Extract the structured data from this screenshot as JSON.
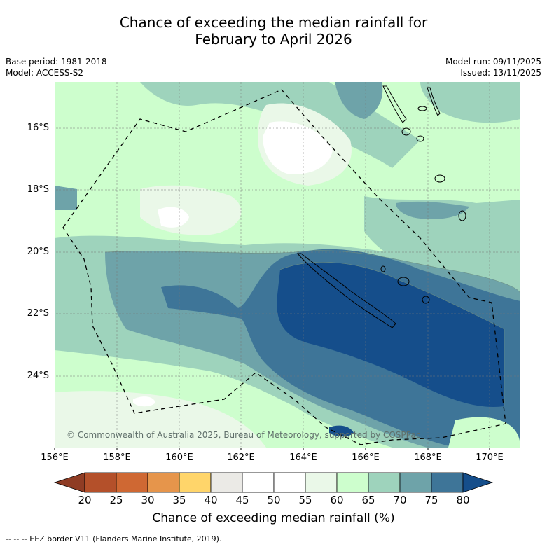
{
  "title": {
    "line1": "Chance of exceeding the median rainfall for",
    "line2": "February to April 2026"
  },
  "meta": {
    "base_period": "Base period: 1981-2018",
    "model": "Model: ACCESS-S2",
    "model_run": "Model run: 09/11/2025",
    "issued": "Issued: 13/11/2025"
  },
  "map": {
    "latitude_labels": [
      "16°S",
      "18°S",
      "20°S",
      "22°S",
      "24°S"
    ],
    "longitude_labels": [
      "156°E",
      "158°E",
      "160°E",
      "162°E",
      "164°E",
      "166°E",
      "168°E",
      "170°E"
    ],
    "copyright": "© Commonwealth of Australia 2025, Bureau of Meteorology, supported by COSPPac"
  },
  "colorbar": {
    "ticks": [
      "20",
      "25",
      "30",
      "35",
      "40",
      "45",
      "50",
      "55",
      "60",
      "65",
      "70",
      "75",
      "80"
    ],
    "colors": [
      "#8f3c24",
      "#b4502a",
      "#cf6833",
      "#e6954b",
      "#ffd56a",
      "#ebeae6",
      "#ffffff",
      "#ffffff",
      "#eaf8e8",
      "#cdfecd",
      "#9ed3bc",
      "#6ea3a9",
      "#3e7598",
      "#154e8b"
    ],
    "label": "Chance of exceeding median rainfall (%)"
  },
  "footnote": "--  --  -- EEZ border V11 (Flanders Marine Institute, 2019)."
}
